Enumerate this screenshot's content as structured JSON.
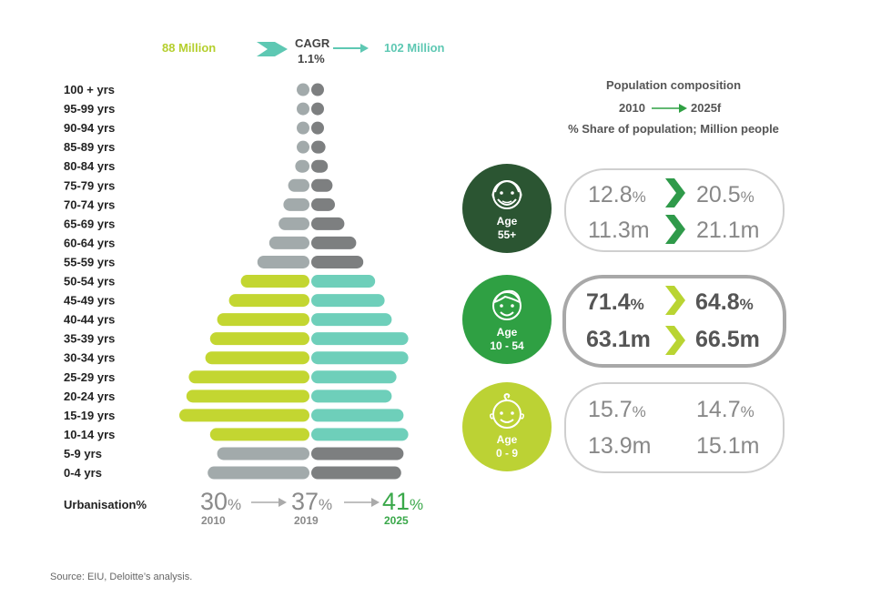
{
  "header": {
    "start": "88 Million",
    "cagr_title": "CAGR",
    "cagr_value": "1.1%",
    "end": "102 Million",
    "start_color": "#b5cf2e",
    "end_color": "#5ec8b3"
  },
  "chart_data": {
    "type": "bar",
    "subtype": "population-pyramid",
    "categories": [
      "100 + yrs",
      "95-99 yrs",
      "90-94 yrs",
      "85-89 yrs",
      "80-84 yrs",
      "75-79 yrs",
      "70-74 yrs",
      "65-69 yrs",
      "60-64 yrs",
      "55-59 yrs",
      "50-54 yrs",
      "45-49 yrs",
      "40-44 yrs",
      "35-39 yrs",
      "30-34 yrs",
      "25-29 yrs",
      "20-24 yrs",
      "15-19 yrs",
      "10-14 yrs",
      "5-9 yrs",
      "0-4 yrs"
    ],
    "series": [
      {
        "name": "2010",
        "values": [
          0.3,
          0.3,
          0.3,
          0.5,
          0.6,
          0.9,
          1.1,
          1.3,
          1.7,
          2.2,
          2.9,
          3.4,
          3.9,
          4.2,
          4.4,
          5.1,
          5.2,
          5.5,
          4.2,
          3.9,
          4.3
        ]
      },
      {
        "name": "2025f",
        "values": [
          0.4,
          0.4,
          0.5,
          0.6,
          0.7,
          0.9,
          1.0,
          1.4,
          1.9,
          2.2,
          2.7,
          3.1,
          3.4,
          4.1,
          4.1,
          3.6,
          3.4,
          3.9,
          4.1,
          3.9,
          3.8
        ]
      }
    ],
    "group_colors": {
      "2010": {
        "old": "#a2aaab",
        "working": "#c3d631",
        "young": "#a2aaab"
      },
      "2025f": {
        "old": "#7d7f80",
        "working": "#6ecfba",
        "young": "#7d7f80"
      }
    },
    "working_range": [
      "50-54 yrs",
      "10-14 yrs"
    ]
  },
  "urbanisation": {
    "label": "Urbanisation%",
    "items": [
      {
        "value": "30",
        "unit": "%",
        "year": "2010",
        "color": "#8a8a8a"
      },
      {
        "value": "37",
        "unit": "%",
        "year": "2019",
        "color": "#8a8a8a"
      },
      {
        "value": "41",
        "unit": "%",
        "year": "2025",
        "color": "#3aa84a"
      }
    ]
  },
  "composition": {
    "title": "Population composition",
    "from_year": "2010",
    "to_year": "2025f",
    "subtitle": "% Share of population; Million people",
    "groups": [
      {
        "label_top": "Age",
        "label_bottom": "55+",
        "color": "#2b5532",
        "share_2010": "12.8",
        "share_2025": "20.5",
        "people_2010": "11.3m",
        "people_2025": "21.1m",
        "chevron_color": "#2f9a4a",
        "emphasis": false
      },
      {
        "label_top": "Age",
        "label_bottom": "10 - 54",
        "color": "#2fa043",
        "share_2010": "71.4",
        "share_2025": "64.8",
        "people_2010": "63.1m",
        "people_2025": "66.5m",
        "chevron_color": "#b9d432",
        "emphasis": true
      },
      {
        "label_top": "Age",
        "label_bottom": "0 - 9",
        "color": "#bcd234",
        "share_2010": "15.7",
        "share_2025": "14.7",
        "people_2010": "13.9m",
        "people_2025": "15.1m",
        "chevron_color": "",
        "emphasis": false
      }
    ],
    "percent_symbol": "%"
  },
  "source": "Source: EIU, Deloitte’s analysis."
}
